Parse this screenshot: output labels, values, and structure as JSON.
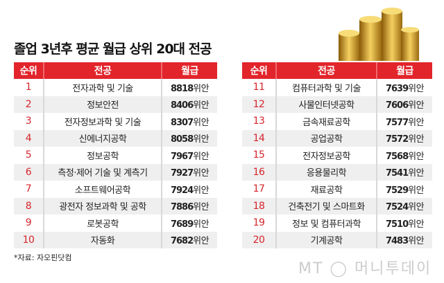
{
  "title": "졸업 3년후 평균 월급 상위 20대 전공",
  "headers": {
    "rank": "순위",
    "major": "전공",
    "salary": "월급"
  },
  "unit": "위안",
  "left": [
    {
      "rank": "1",
      "major": "전자과학 및 기술",
      "salary": "8818"
    },
    {
      "rank": "2",
      "major": "정보안전",
      "salary": "8406"
    },
    {
      "rank": "3",
      "major": "전자정보과학 및 기술",
      "salary": "8307"
    },
    {
      "rank": "4",
      "major": "신에너지공학",
      "salary": "8058"
    },
    {
      "rank": "5",
      "major": "정보공학",
      "salary": "7967"
    },
    {
      "rank": "6",
      "major": "측정·제어 기술 및 계측기",
      "salary": "7927"
    },
    {
      "rank": "7",
      "major": "소프트웨어공학",
      "salary": "7924"
    },
    {
      "rank": "8",
      "major": "광전자 정보과학 및 공학",
      "salary": "7886"
    },
    {
      "rank": "9",
      "major": "로봇공학",
      "salary": "7689"
    },
    {
      "rank": "10",
      "major": "자동화",
      "salary": "7682"
    }
  ],
  "right": [
    {
      "rank": "11",
      "major": "컴퓨터과학 및 기술",
      "salary": "7639"
    },
    {
      "rank": "12",
      "major": "사물인터넷공학",
      "salary": "7606"
    },
    {
      "rank": "13",
      "major": "금속재료공학",
      "salary": "7577"
    },
    {
      "rank": "14",
      "major": "공업공학",
      "salary": "7572"
    },
    {
      "rank": "15",
      "major": "전자정보공학",
      "salary": "7568"
    },
    {
      "rank": "16",
      "major": "응용물리학",
      "salary": "7541"
    },
    {
      "rank": "17",
      "major": "재료공학",
      "salary": "7529"
    },
    {
      "rank": "18",
      "major": "건축전기 및 스마트화",
      "salary": "7524"
    },
    {
      "rank": "19",
      "major": "정보 및 컴퓨터과학",
      "salary": "7510"
    },
    {
      "rank": "20",
      "major": "기계공학",
      "salary": "7483"
    }
  ],
  "note": "*자료: 자오핀닷컴",
  "watermark": {
    "logo": "MT",
    "name": "머니투데이"
  },
  "colors": {
    "accent": "#e2242b",
    "row_alt": "#efefef"
  }
}
